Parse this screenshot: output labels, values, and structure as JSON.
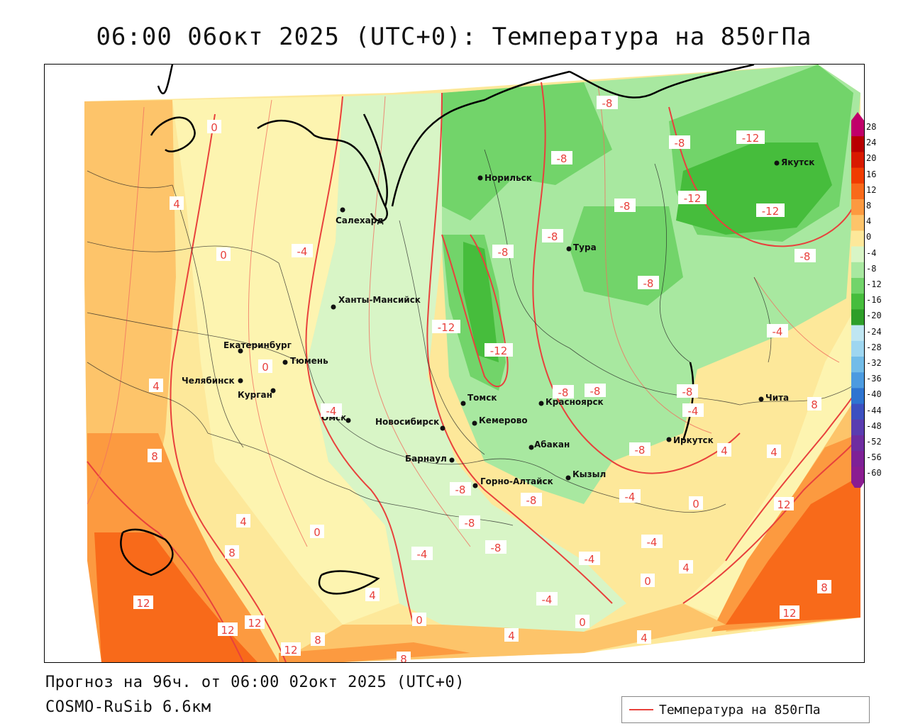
{
  "title": "06:00 06окт 2025 (UTC+0): Температура на 850гПа",
  "footer": {
    "forecast": "Прогноз на 96ч. от 06:00 02окт 2025 (UTC+0)",
    "model": "COSMO-RuSib 6.6км"
  },
  "legend": {
    "label": "Температура на 850гПа",
    "line_color": "#e8413c"
  },
  "colorbar": {
    "ticks": [
      "28",
      "24",
      "20",
      "16",
      "12",
      "8",
      "4",
      "0",
      "-4",
      "-8",
      "-12",
      "-16",
      "-20",
      "-24",
      "-28",
      "-32",
      "-36",
      "-40",
      "-44",
      "-48",
      "-52",
      "-56",
      "-60"
    ],
    "colors": [
      "#c0006a",
      "#b80000",
      "#d81a00",
      "#f03c00",
      "#f86a1a",
      "#fc9a40",
      "#fdc46a",
      "#fde89a",
      "#d8f5c6",
      "#a8e8a0",
      "#72d46a",
      "#46bd3c",
      "#2e9e28",
      "#bfe6f2",
      "#9ed6f0",
      "#72bce8",
      "#4c9be0",
      "#2e74d0",
      "#3c50c0",
      "#5a3cb0",
      "#6e2ca0",
      "#7e2096",
      "#8a1c90"
    ]
  },
  "cities": [
    {
      "name": "Норильск"
    },
    {
      "name": "Якутск"
    },
    {
      "name": "Салехард"
    },
    {
      "name": "Тура"
    },
    {
      "name": "Ханты-Мансийск"
    },
    {
      "name": "Екатеринбург"
    },
    {
      "name": "Тюмень"
    },
    {
      "name": "Челябинск"
    },
    {
      "name": "Курган"
    },
    {
      "name": "Омск"
    },
    {
      "name": "Новосибирск"
    },
    {
      "name": "Томск"
    },
    {
      "name": "Кемерово"
    },
    {
      "name": "Красноярск"
    },
    {
      "name": "Барнаул"
    },
    {
      "name": "Абакан"
    },
    {
      "name": "Иркутск"
    },
    {
      "name": "Чита"
    },
    {
      "name": "Кызыл"
    },
    {
      "name": "Горно-Алтайск"
    }
  ],
  "isotherm_labels": [
    "-8",
    "-8",
    "-12",
    "-8",
    "-12",
    "-12",
    "-8",
    "-8",
    "-8",
    "-8",
    "-12",
    "-12",
    "-8",
    "-8",
    "-4",
    "-4",
    "-8",
    "-8",
    "-8",
    "-4",
    "-8",
    "-4",
    "-4",
    "-4",
    "-4",
    "-4",
    "-8",
    "-8",
    "-8",
    "-4",
    "0",
    "0",
    "0",
    "0",
    "0",
    "0",
    "0",
    "0",
    "4",
    "4",
    "4",
    "4",
    "4",
    "4",
    "4",
    "4",
    "4",
    "8",
    "8",
    "8",
    "8",
    "8",
    "8",
    "12",
    "12",
    "12",
    "12",
    "12",
    "12"
  ]
}
